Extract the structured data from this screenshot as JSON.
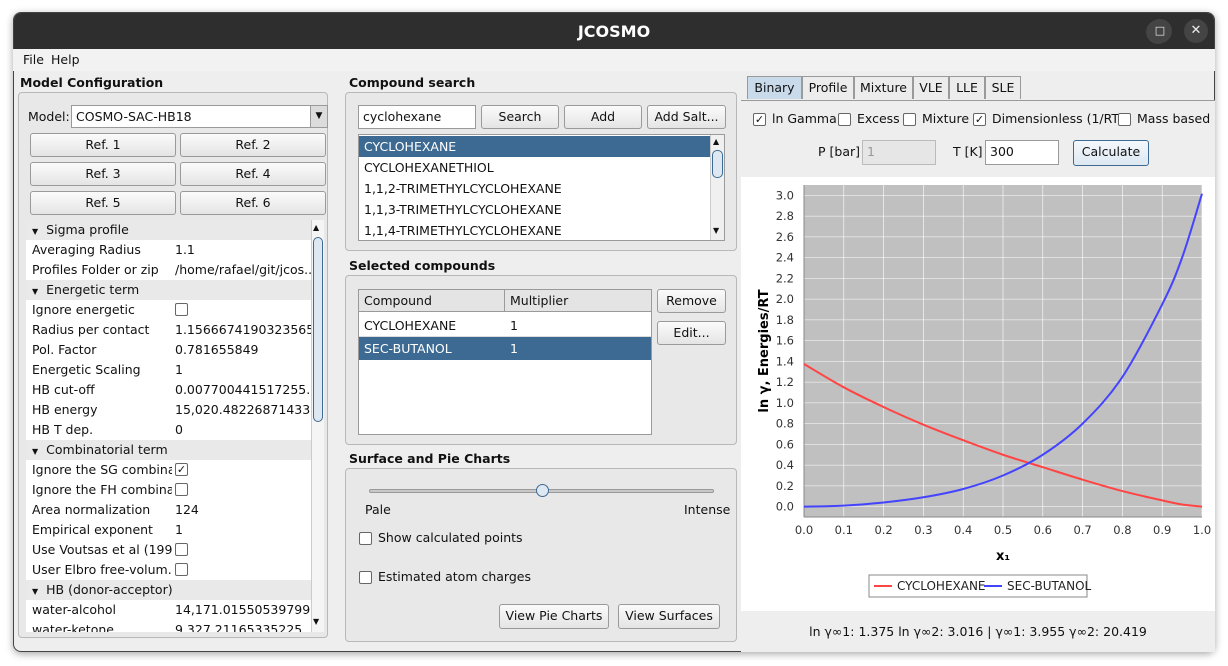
{
  "app": {
    "title": "JCOSMO"
  },
  "menu": [
    "File",
    "Help"
  ],
  "model_config": {
    "title": "Model Configuration",
    "model_label": "Model:",
    "model_value": "COSMO-SAC-HB18",
    "refs": [
      "Ref. 1",
      "Ref. 2",
      "Ref. 3",
      "Ref. 4",
      "Ref. 5",
      "Ref. 6"
    ],
    "properties": [
      {
        "type": "section",
        "label": "Sigma profile"
      },
      {
        "type": "text",
        "label": "Averaging Radius",
        "value": "1.1"
      },
      {
        "type": "text",
        "label": "Profiles Folder or zip",
        "value": "/home/rafael/git/jcos..."
      },
      {
        "type": "section",
        "label": "Energetic term"
      },
      {
        "type": "check",
        "label": "Ignore energetic",
        "checked": false
      },
      {
        "type": "text",
        "label": "Radius per contact",
        "value": "1.1566674190323565"
      },
      {
        "type": "text",
        "label": "Pol. Factor",
        "value": "0.781655849"
      },
      {
        "type": "text",
        "label": "Energetic Scaling",
        "value": "1"
      },
      {
        "type": "text",
        "label": "HB cut-off",
        "value": "0.007700441517255..."
      },
      {
        "type": "text",
        "label": "HB energy",
        "value": "15,020.482268714331"
      },
      {
        "type": "text",
        "label": "HB T dep.",
        "value": "0"
      },
      {
        "type": "section",
        "label": "Combinatorial term"
      },
      {
        "type": "check",
        "label": "Ignore the SG combina...",
        "checked": true
      },
      {
        "type": "check",
        "label": "Ignore the FH combina...",
        "checked": false
      },
      {
        "type": "text",
        "label": "Area normalization",
        "value": "124"
      },
      {
        "type": "text",
        "label": "Empirical exponent",
        "value": "1"
      },
      {
        "type": "check",
        "label": "Use Voutsas et al (199...",
        "checked": false
      },
      {
        "type": "check",
        "label": "User Elbro free-volum...",
        "checked": false
      },
      {
        "type": "section",
        "label": "HB (donor-acceptor)"
      },
      {
        "type": "text",
        "label": "water-alcohol",
        "value": "14,171.015505397998"
      },
      {
        "type": "text",
        "label": "water-ketone",
        "value": "9,327.21165335225"
      }
    ]
  },
  "compound_search": {
    "title": "Compound search",
    "query": "cyclohexane",
    "search_label": "Search",
    "add_label": "Add",
    "add_salt_label": "Add Salt...",
    "results": [
      "CYCLOHEXANE",
      "CYCLOHEXANETHIOL",
      "1,1,2-TRIMETHYLCYCLOHEXANE",
      "1,1,3-TRIMETHYLCYCLOHEXANE",
      "1,1,4-TRIMETHYLCYCLOHEXANE"
    ]
  },
  "selected": {
    "title": "Selected compounds",
    "col_compound": "Compound",
    "col_multiplier": "Multiplier",
    "rows": [
      {
        "compound": "CYCLOHEXANE",
        "multiplier": "1"
      },
      {
        "compound": "SEC-BUTANOL",
        "multiplier": "1"
      }
    ],
    "remove_label": "Remove",
    "edit_label": "Edit..."
  },
  "surface": {
    "title": "Surface and Pie Charts",
    "slider_value": 0.5,
    "pale": "Pale",
    "intense": "Intense",
    "show_points": "Show calculated points",
    "est_charges": "Estimated atom charges",
    "view_pie": "View Pie Charts",
    "view_surfaces": "View Surfaces"
  },
  "tabs": [
    "Binary",
    "Profile",
    "Mixture",
    "VLE",
    "LLE",
    "SLE"
  ],
  "binary": {
    "checks": [
      {
        "label": "ln Gamma",
        "checked": true
      },
      {
        "label": "Excess",
        "checked": false
      },
      {
        "label": "Mixture",
        "checked": false
      },
      {
        "label": "Dimensionless (1/RT)",
        "checked": true
      },
      {
        "label": "Mass based",
        "checked": false
      }
    ],
    "p_label": "P [bar]",
    "p_value": "1",
    "t_label": "T [K]",
    "t_value": "300",
    "calculate": "Calculate",
    "status": "ln γ∞1: 1.375  ln γ∞2: 3.016  |  γ∞1: 3.955  γ∞2: 20.419"
  },
  "chart_data": {
    "type": "line",
    "xlabel": "x₁",
    "ylabel": "ln γ, Energies/RT",
    "xlim": [
      0,
      1
    ],
    "ylim": [
      -0.1,
      3.1
    ],
    "xticks": [
      "0.0",
      "0.1",
      "0.2",
      "0.3",
      "0.4",
      "0.5",
      "0.6",
      "0.7",
      "0.8",
      "0.9",
      "1.0"
    ],
    "yticks": [
      "0.0",
      "0.2",
      "0.4",
      "0.6",
      "0.8",
      "1.0",
      "1.2",
      "1.4",
      "1.6",
      "1.8",
      "2.0",
      "2.2",
      "2.4",
      "2.6",
      "2.8",
      "3.0"
    ],
    "legend_position": "bottom",
    "x": [
      0,
      0.1,
      0.2,
      0.3,
      0.4,
      0.5,
      0.6,
      0.7,
      0.8,
      0.9,
      0.95,
      1.0
    ],
    "series": [
      {
        "name": "CYCLOHEXANE",
        "color": "#ff4444",
        "values": [
          1.375,
          1.15,
          0.96,
          0.79,
          0.64,
          0.5,
          0.38,
          0.26,
          0.15,
          0.06,
          0.02,
          0.0
        ]
      },
      {
        "name": "SEC-BUTANOL",
        "color": "#4444ff",
        "values": [
          0.0,
          0.01,
          0.04,
          0.09,
          0.17,
          0.3,
          0.5,
          0.8,
          1.25,
          1.95,
          2.4,
          3.016
        ]
      }
    ]
  }
}
